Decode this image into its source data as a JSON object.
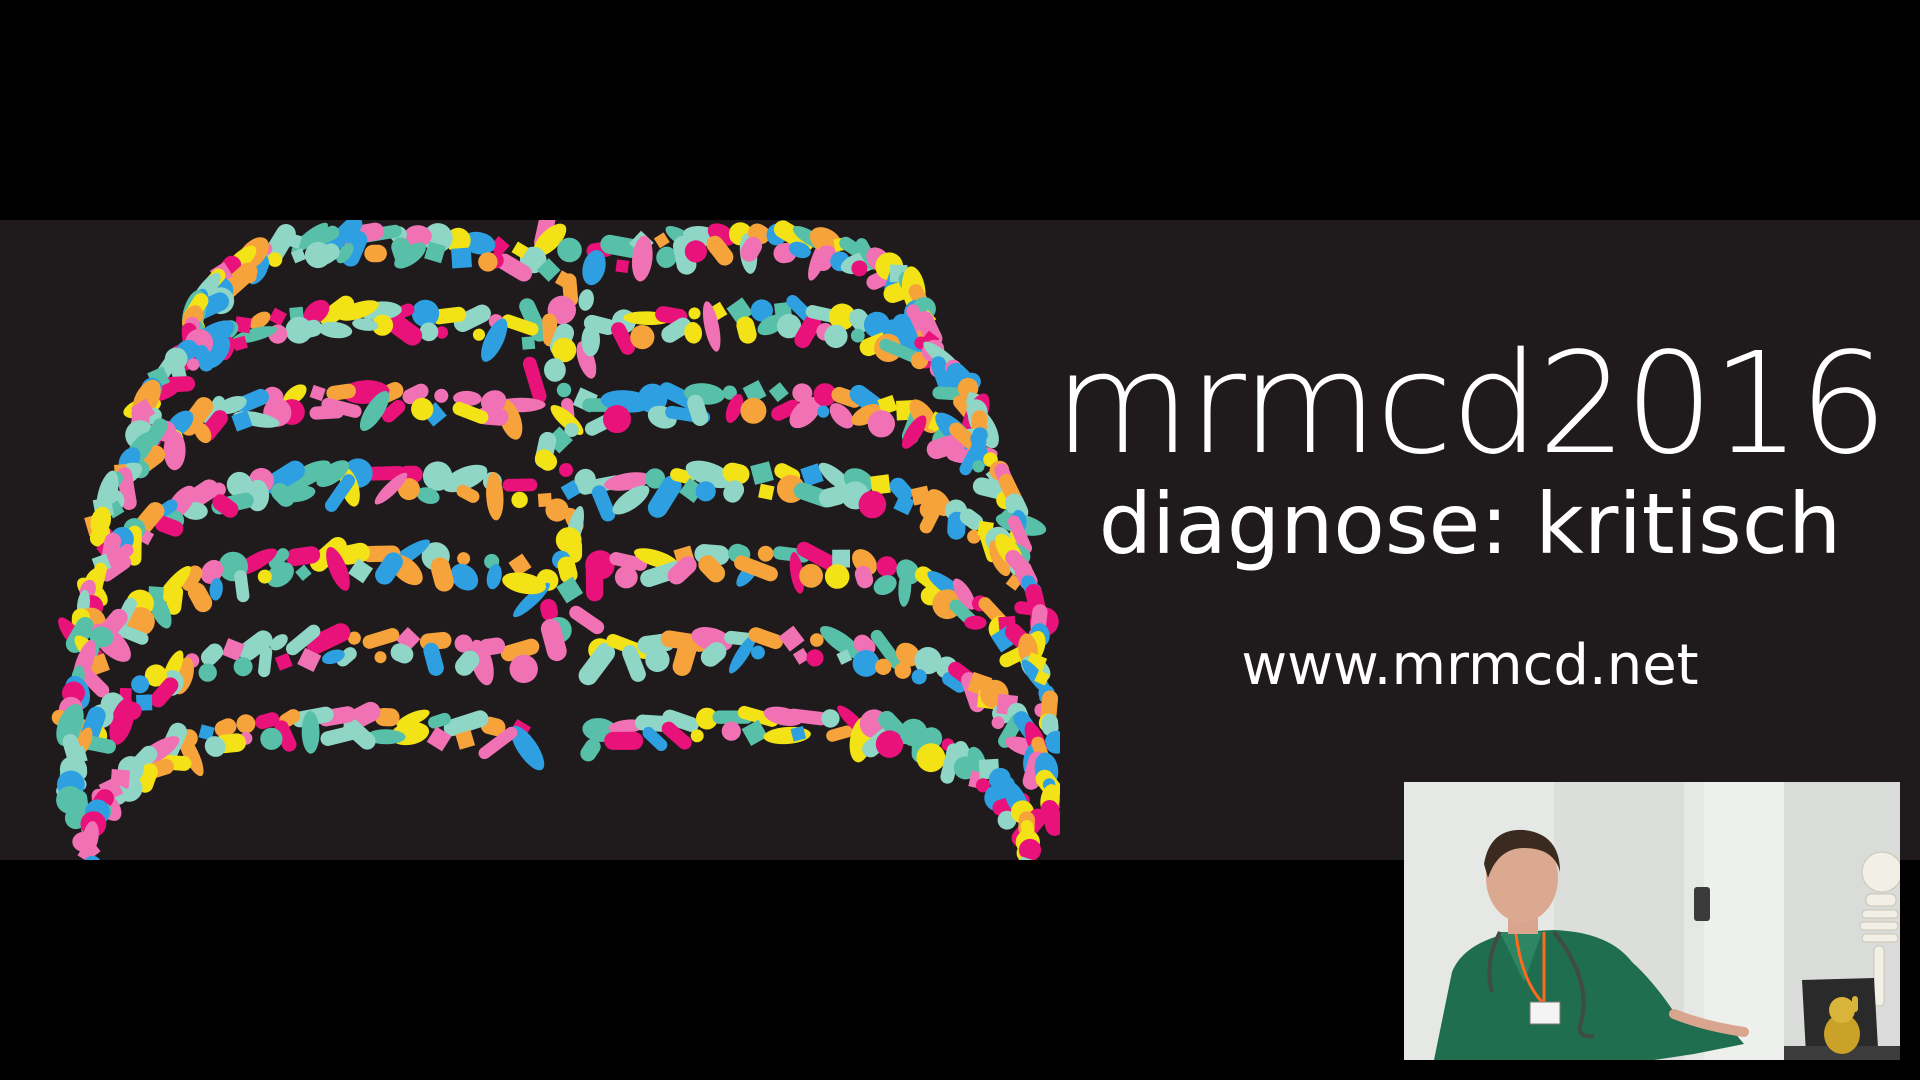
{
  "slide": {
    "title": "mrmcd2016",
    "subtitle": "diagnose: kritisch",
    "url": "www.mrmcd.net"
  },
  "ribcage_artwork": {
    "icon": "pill-ribcage-illustration",
    "palette": [
      "#e8127a",
      "#f072b4",
      "#f7a33b",
      "#f3e316",
      "#58bfa9",
      "#2e9fe0",
      "#8fd6c6"
    ]
  },
  "speaker_video": {
    "icon": "speaker-video-feed"
  },
  "colors": {
    "background": "#000000",
    "banner": "#1f1a1b",
    "text": "#ffffff"
  }
}
